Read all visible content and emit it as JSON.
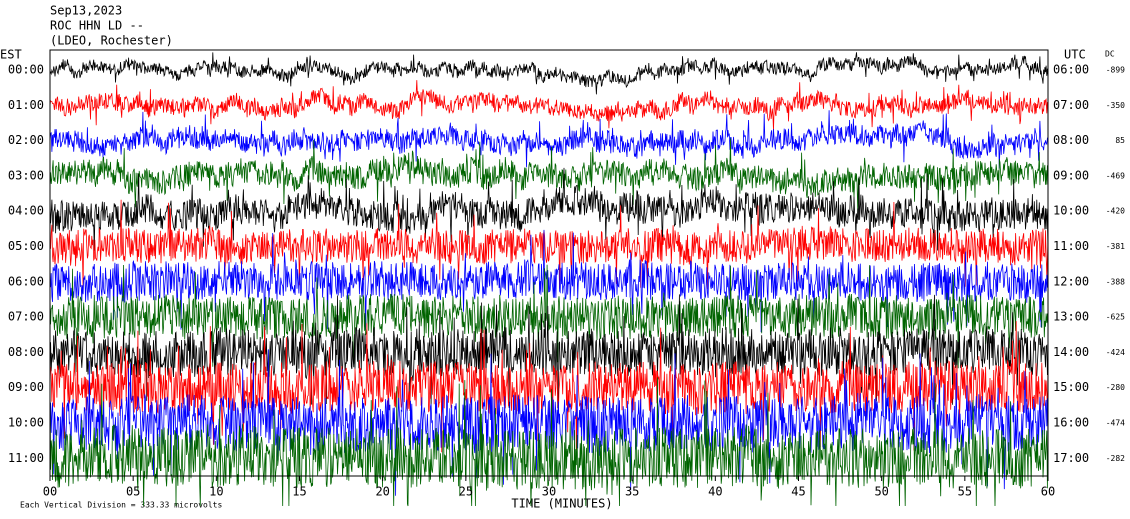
{
  "chart_data": {
    "type": "helicorder",
    "title": [
      "Sep13,2023",
      "ROC HHN LD --",
      "(LDEO, Rochester)"
    ],
    "left_axis_title": "EST",
    "right_axis_title": "UTC",
    "offset_title": "DC",
    "xlabel": "TIME (MINUTES)",
    "scale_note": "Each Vertical Division =  333.33 microvolts",
    "xlim": [
      0,
      60
    ],
    "xticks": [
      {
        "value": 0,
        "label": "00"
      },
      {
        "value": 5,
        "label": "05"
      },
      10,
      15,
      20,
      25,
      30,
      35,
      40,
      45,
      50,
      55,
      60
    ],
    "rows": [
      {
        "est": "00:00",
        "utc": "06:00",
        "dc": -899,
        "color": "#000000"
      },
      {
        "est": "01:00",
        "utc": "07:00",
        "dc": -350,
        "color": "#ff0000"
      },
      {
        "est": "02:00",
        "utc": "08:00",
        "dc": 85,
        "color": "#0000ff"
      },
      {
        "est": "03:00",
        "utc": "09:00",
        "dc": -469,
        "color": "#006400"
      },
      {
        "est": "04:00",
        "utc": "10:00",
        "dc": -420,
        "color": "#000000"
      },
      {
        "est": "05:00",
        "utc": "11:00",
        "dc": -381,
        "color": "#ff0000"
      },
      {
        "est": "06:00",
        "utc": "12:00",
        "dc": -388,
        "color": "#0000ff"
      },
      {
        "est": "07:00",
        "utc": "13:00",
        "dc": -625,
        "color": "#006400"
      },
      {
        "est": "08:00",
        "utc": "14:00",
        "dc": -424,
        "color": "#000000"
      },
      {
        "est": "09:00",
        "utc": "15:00",
        "dc": -280,
        "color": "#ff0000"
      },
      {
        "est": "10:00",
        "utc": "16:00",
        "dc": -474,
        "color": "#0000ff"
      },
      {
        "est": "11:00",
        "utc": "17:00",
        "dc": -282,
        "color": "#006400"
      }
    ]
  }
}
